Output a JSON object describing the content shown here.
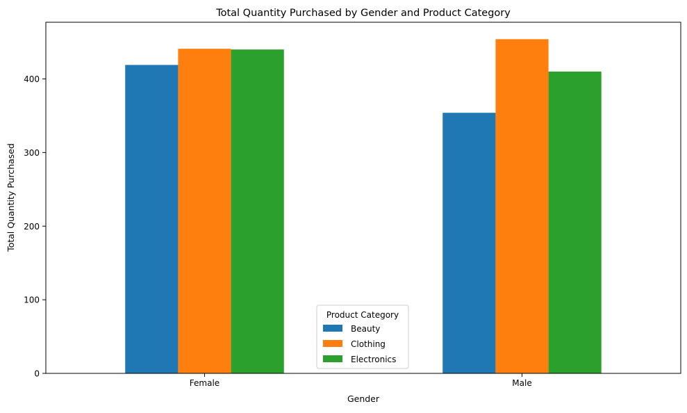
{
  "chart_data": {
    "type": "bar",
    "title": "Total Quantity Purchased by Gender and Product Category",
    "xlabel": "Gender",
    "ylabel": "Total Quantity Purchased",
    "categories": [
      "Female",
      "Male"
    ],
    "series": [
      {
        "name": "Beauty",
        "values": [
          419,
          354
        ],
        "color": "#1f77b4"
      },
      {
        "name": "Clothing",
        "values": [
          441,
          454
        ],
        "color": "#ff7f0e"
      },
      {
        "name": "Electronics",
        "values": [
          440,
          410
        ],
        "color": "#2ca02c"
      }
    ],
    "ylim": [
      0,
      477
    ],
    "yticks": [
      0,
      100,
      200,
      300,
      400
    ],
    "grid": false,
    "legend": {
      "title": "Product Category",
      "placement": "bottom-center"
    }
  }
}
